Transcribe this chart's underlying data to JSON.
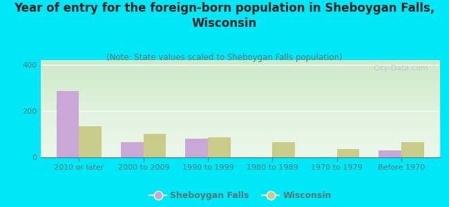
{
  "title": "Year of entry for the foreign-born population in Sheboygan Falls,\nWisconsin",
  "subtitle": "(Note: State values scaled to Sheboygan Falls population)",
  "categories": [
    "2010 or later",
    "2000 to 2009",
    "1990 to 1999",
    "1980 to 1989",
    "1970 to 1979",
    "Before 1970"
  ],
  "sheboygan_values": [
    285,
    65,
    80,
    0,
    0,
    30
  ],
  "wisconsin_values": [
    135,
    100,
    85,
    65,
    35,
    65
  ],
  "sheboygan_color": "#c9a8d8",
  "wisconsin_color": "#c8cc88",
  "background_color": "#00e8f8",
  "plot_bg_color": "#eef8ee",
  "title_color": "#222222",
  "subtitle_color": "#557777",
  "tick_label_color": "#557777",
  "ytick_label_color": "#557777",
  "ylim": [
    0,
    420
  ],
  "yticks": [
    0,
    200,
    400
  ],
  "bar_width": 0.35,
  "watermark": "City-Data.com",
  "legend_sheboygan": "Sheboygan Falls",
  "legend_wisconsin": "Wisconsin",
  "title_fontsize": 12,
  "subtitle_fontsize": 8.5,
  "tick_fontsize": 8,
  "grid_color": "#ffffff"
}
